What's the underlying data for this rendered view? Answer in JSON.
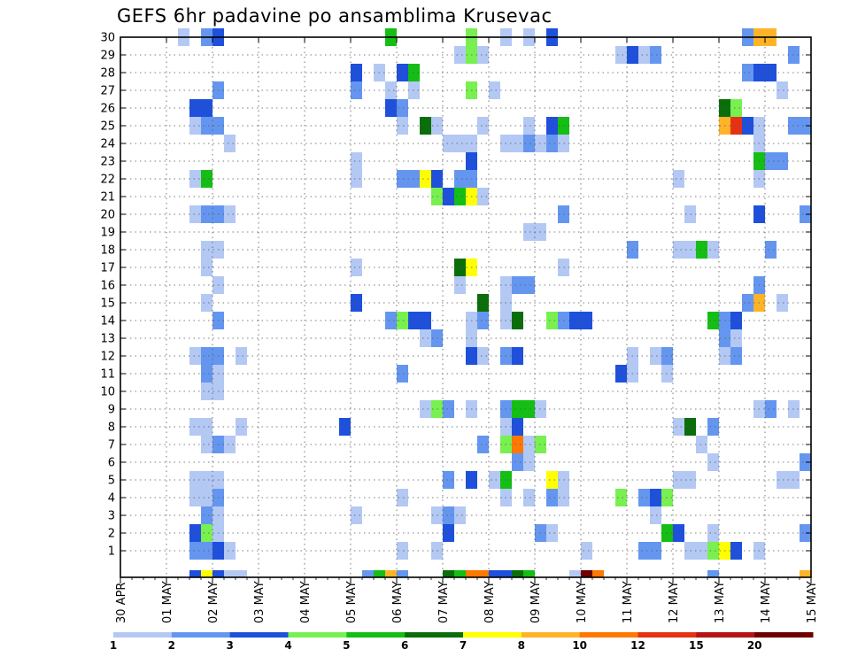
{
  "title": "GEFS 6hr padavine po ansamblima Krusevac",
  "chart_data": {
    "type": "heatmap",
    "title": "GEFS 6hr padavine po ansamblima Krusevac",
    "y_ticks": [
      1,
      2,
      3,
      4,
      5,
      6,
      7,
      8,
      9,
      10,
      11,
      12,
      13,
      14,
      15,
      16,
      17,
      18,
      19,
      20,
      21,
      22,
      23,
      24,
      25,
      26,
      27,
      28,
      29,
      30
    ],
    "x_ticks": [
      "30 APR",
      "01 MAY",
      "02 MAY",
      "03 MAY",
      "04 MAY",
      "05 MAY",
      "06 MAY",
      "07 MAY",
      "08 MAY",
      "09 MAY",
      "10 MAY",
      "11 MAY",
      "12 MAY",
      "13 MAY",
      "14 MAY",
      "15 MAY"
    ],
    "x_range_days": [
      0,
      15
    ],
    "grid": true,
    "colorbar": {
      "labels": [
        "1",
        "2",
        "3",
        "4",
        "5",
        "6",
        "7",
        "8",
        "10",
        "12",
        "15",
        "20"
      ],
      "colors": [
        "#b4c8f4",
        "#6496f0",
        "#1e50dc",
        "#78f050",
        "#14be14",
        "#0a6e0a",
        "#ffff00",
        "#ffb428",
        "#ff7800",
        "#e63214",
        "#b41414",
        "#6e0000"
      ]
    },
    "cells": [
      [
        30,
        1.25,
        1
      ],
      [
        30,
        1.75,
        2
      ],
      [
        30,
        2.0,
        3
      ],
      [
        30,
        5.75,
        5
      ],
      [
        30,
        7.5,
        4
      ],
      [
        30,
        8.25,
        1
      ],
      [
        30,
        8.75,
        1
      ],
      [
        30,
        9.25,
        3
      ],
      [
        30,
        13.5,
        2
      ],
      [
        30,
        13.75,
        8
      ],
      [
        30,
        14.0,
        8
      ],
      [
        29,
        7.25,
        1
      ],
      [
        29,
        7.5,
        4
      ],
      [
        29,
        7.75,
        1
      ],
      [
        29,
        10.75,
        1
      ],
      [
        29,
        11.0,
        3
      ],
      [
        29,
        11.25,
        1
      ],
      [
        29,
        11.5,
        2
      ],
      [
        29,
        14.5,
        2
      ],
      [
        28,
        5.0,
        3
      ],
      [
        28,
        5.5,
        1
      ],
      [
        28,
        6.0,
        3
      ],
      [
        28,
        6.25,
        5
      ],
      [
        28,
        13.5,
        2
      ],
      [
        28,
        13.75,
        3
      ],
      [
        28,
        14.0,
        3
      ],
      [
        27,
        2.0,
        2
      ],
      [
        27,
        5.0,
        2
      ],
      [
        27,
        5.75,
        1
      ],
      [
        27,
        6.25,
        1
      ],
      [
        27,
        7.5,
        4
      ],
      [
        27,
        8.0,
        1
      ],
      [
        27,
        14.25,
        1
      ],
      [
        26,
        1.5,
        3
      ],
      [
        26,
        1.75,
        3
      ],
      [
        26,
        5.75,
        3
      ],
      [
        26,
        6.0,
        2
      ],
      [
        26,
        13.0,
        6
      ],
      [
        26,
        13.25,
        4
      ],
      [
        25,
        1.5,
        1
      ],
      [
        25,
        1.75,
        2
      ],
      [
        25,
        2.0,
        2
      ],
      [
        25,
        6.0,
        1
      ],
      [
        25,
        6.5,
        6
      ],
      [
        25,
        6.75,
        1
      ],
      [
        25,
        7.75,
        1
      ],
      [
        25,
        8.75,
        1
      ],
      [
        25,
        9.25,
        3
      ],
      [
        25,
        9.5,
        5
      ],
      [
        25,
        13.0,
        8
      ],
      [
        25,
        13.25,
        10
      ],
      [
        25,
        13.5,
        3
      ],
      [
        25,
        13.75,
        1
      ],
      [
        25,
        14.5,
        2
      ],
      [
        25,
        14.75,
        2
      ],
      [
        24,
        2.25,
        1
      ],
      [
        24,
        7.0,
        1
      ],
      [
        24,
        7.25,
        1
      ],
      [
        24,
        7.5,
        1
      ],
      [
        24,
        8.25,
        1
      ],
      [
        24,
        8.5,
        1
      ],
      [
        24,
        8.75,
        2
      ],
      [
        24,
        9.0,
        1
      ],
      [
        24,
        9.25,
        2
      ],
      [
        24,
        9.5,
        1
      ],
      [
        24,
        13.75,
        1
      ],
      [
        23,
        5.0,
        1
      ],
      [
        23,
        7.5,
        3
      ],
      [
        23,
        13.75,
        5
      ],
      [
        23,
        14.0,
        2
      ],
      [
        23,
        14.25,
        2
      ],
      [
        22,
        1.5,
        1
      ],
      [
        22,
        1.75,
        5
      ],
      [
        22,
        5.0,
        1
      ],
      [
        22,
        6.0,
        2
      ],
      [
        22,
        6.25,
        2
      ],
      [
        22,
        6.5,
        7
      ],
      [
        22,
        6.75,
        3
      ],
      [
        22,
        7.25,
        2
      ],
      [
        22,
        7.5,
        2
      ],
      [
        22,
        12.0,
        1
      ],
      [
        22,
        13.75,
        1
      ],
      [
        21,
        6.75,
        4
      ],
      [
        21,
        7.0,
        3
      ],
      [
        21,
        7.25,
        5
      ],
      [
        21,
        7.5,
        7
      ],
      [
        21,
        7.75,
        1
      ],
      [
        20,
        1.5,
        1
      ],
      [
        20,
        1.75,
        2
      ],
      [
        20,
        2.0,
        2
      ],
      [
        20,
        2.25,
        1
      ],
      [
        20,
        9.5,
        2
      ],
      [
        20,
        12.25,
        1
      ],
      [
        20,
        13.75,
        3
      ],
      [
        20,
        14.75,
        2
      ],
      [
        19,
        8.75,
        1
      ],
      [
        19,
        9.0,
        1
      ],
      [
        18,
        1.75,
        1
      ],
      [
        18,
        2.0,
        1
      ],
      [
        18,
        11.0,
        2
      ],
      [
        18,
        12.0,
        1
      ],
      [
        18,
        12.25,
        1
      ],
      [
        18,
        12.5,
        5
      ],
      [
        18,
        12.75,
        1
      ],
      [
        18,
        14.0,
        2
      ],
      [
        17,
        1.75,
        1
      ],
      [
        17,
        5.0,
        1
      ],
      [
        17,
        7.25,
        6
      ],
      [
        17,
        7.5,
        7
      ],
      [
        17,
        9.5,
        1
      ],
      [
        16,
        2.0,
        1
      ],
      [
        16,
        7.25,
        1
      ],
      [
        16,
        8.25,
        1
      ],
      [
        16,
        8.5,
        2
      ],
      [
        16,
        8.75,
        2
      ],
      [
        16,
        13.75,
        2
      ],
      [
        15,
        1.75,
        1
      ],
      [
        15,
        5.0,
        3
      ],
      [
        15,
        7.75,
        6
      ],
      [
        15,
        8.25,
        1
      ],
      [
        15,
        13.5,
        2
      ],
      [
        15,
        13.75,
        8
      ],
      [
        15,
        14.25,
        1
      ],
      [
        14,
        2.0,
        2
      ],
      [
        14,
        5.75,
        2
      ],
      [
        14,
        6.0,
        4
      ],
      [
        14,
        6.25,
        3
      ],
      [
        14,
        6.5,
        3
      ],
      [
        14,
        7.5,
        1
      ],
      [
        14,
        7.75,
        2
      ],
      [
        14,
        8.25,
        1
      ],
      [
        14,
        8.5,
        6
      ],
      [
        14,
        9.25,
        4
      ],
      [
        14,
        9.5,
        2
      ],
      [
        14,
        9.75,
        3
      ],
      [
        14,
        10.0,
        3
      ],
      [
        14,
        12.75,
        5
      ],
      [
        14,
        13.0,
        2
      ],
      [
        14,
        13.25,
        3
      ],
      [
        13,
        6.5,
        1
      ],
      [
        13,
        6.75,
        2
      ],
      [
        13,
        7.5,
        1
      ],
      [
        13,
        13.0,
        2
      ],
      [
        13,
        13.25,
        1
      ],
      [
        12,
        1.5,
        1
      ],
      [
        12,
        1.75,
        2
      ],
      [
        12,
        2.0,
        2
      ],
      [
        12,
        2.5,
        1
      ],
      [
        12,
        7.5,
        3
      ],
      [
        12,
        7.75,
        1
      ],
      [
        12,
        8.25,
        2
      ],
      [
        12,
        8.5,
        3
      ],
      [
        12,
        11.0,
        1
      ],
      [
        12,
        11.5,
        1
      ],
      [
        12,
        11.75,
        2
      ],
      [
        12,
        13.0,
        1
      ],
      [
        12,
        13.25,
        2
      ],
      [
        11,
        1.75,
        2
      ],
      [
        11,
        2.0,
        1
      ],
      [
        11,
        6.0,
        2
      ],
      [
        11,
        10.75,
        3
      ],
      [
        11,
        11.0,
        1
      ],
      [
        11,
        11.75,
        1
      ],
      [
        10,
        1.75,
        1
      ],
      [
        10,
        2.0,
        1
      ],
      [
        9,
        6.5,
        1
      ],
      [
        9,
        6.75,
        4
      ],
      [
        9,
        7.0,
        2
      ],
      [
        9,
        7.5,
        1
      ],
      [
        9,
        8.25,
        2
      ],
      [
        9,
        8.5,
        5
      ],
      [
        9,
        8.75,
        5
      ],
      [
        9,
        9.0,
        1
      ],
      [
        9,
        13.75,
        1
      ],
      [
        9,
        14.0,
        2
      ],
      [
        9,
        14.5,
        1
      ],
      [
        8,
        1.5,
        1
      ],
      [
        8,
        1.75,
        1
      ],
      [
        8,
        2.5,
        1
      ],
      [
        8,
        4.75,
        3
      ],
      [
        8,
        8.25,
        1
      ],
      [
        8,
        8.5,
        3
      ],
      [
        8,
        12.0,
        1
      ],
      [
        8,
        12.25,
        6
      ],
      [
        8,
        12.75,
        2
      ],
      [
        7,
        1.75,
        1
      ],
      [
        7,
        2.0,
        2
      ],
      [
        7,
        2.25,
        1
      ],
      [
        7,
        7.75,
        2
      ],
      [
        7,
        8.25,
        4
      ],
      [
        7,
        8.5,
        9
      ],
      [
        7,
        8.75,
        1
      ],
      [
        7,
        9.0,
        4
      ],
      [
        7,
        12.5,
        1
      ],
      [
        6,
        8.5,
        2
      ],
      [
        6,
        8.75,
        1
      ],
      [
        6,
        12.75,
        1
      ],
      [
        6,
        14.75,
        2
      ],
      [
        5,
        1.5,
        1
      ],
      [
        5,
        1.75,
        1
      ],
      [
        5,
        2.0,
        1
      ],
      [
        5,
        7.0,
        2
      ],
      [
        5,
        7.5,
        3
      ],
      [
        5,
        8.0,
        1
      ],
      [
        5,
        8.25,
        5
      ],
      [
        5,
        9.25,
        7
      ],
      [
        5,
        9.5,
        1
      ],
      [
        5,
        12.0,
        1
      ],
      [
        5,
        12.25,
        1
      ],
      [
        5,
        14.25,
        1
      ],
      [
        5,
        14.5,
        1
      ],
      [
        4,
        1.5,
        1
      ],
      [
        4,
        1.75,
        1
      ],
      [
        4,
        2.0,
        2
      ],
      [
        4,
        6.0,
        1
      ],
      [
        4,
        8.25,
        1
      ],
      [
        4,
        8.75,
        1
      ],
      [
        4,
        9.25,
        2
      ],
      [
        4,
        9.5,
        1
      ],
      [
        4,
        10.75,
        4
      ],
      [
        4,
        11.25,
        2
      ],
      [
        4,
        11.5,
        3
      ],
      [
        4,
        11.75,
        4
      ],
      [
        3,
        1.75,
        2
      ],
      [
        3,
        2.0,
        1
      ],
      [
        3,
        5.0,
        1
      ],
      [
        3,
        6.75,
        1
      ],
      [
        3,
        7.0,
        2
      ],
      [
        3,
        7.25,
        1
      ],
      [
        3,
        11.5,
        1
      ],
      [
        2,
        1.5,
        3
      ],
      [
        2,
        1.75,
        4
      ],
      [
        2,
        2.0,
        1
      ],
      [
        2,
        7.0,
        3
      ],
      [
        2,
        9.0,
        2
      ],
      [
        2,
        9.25,
        1
      ],
      [
        2,
        11.75,
        5
      ],
      [
        2,
        12.0,
        3
      ],
      [
        2,
        12.75,
        1
      ],
      [
        2,
        14.75,
        2
      ],
      [
        1,
        1.5,
        2
      ],
      [
        1,
        1.75,
        2
      ],
      [
        1,
        2.0,
        3
      ],
      [
        1,
        2.25,
        1
      ],
      [
        1,
        6.0,
        1
      ],
      [
        1,
        6.75,
        1
      ],
      [
        1,
        10.0,
        1
      ],
      [
        1,
        11.25,
        2
      ],
      [
        1,
        11.5,
        2
      ],
      [
        1,
        12.25,
        1
      ],
      [
        1,
        12.5,
        1
      ],
      [
        1,
        12.75,
        4
      ],
      [
        1,
        13.0,
        7
      ],
      [
        1,
        13.25,
        3
      ],
      [
        1,
        13.75,
        1
      ],
      [
        0,
        1.5,
        3
      ],
      [
        0,
        1.75,
        7
      ],
      [
        0,
        2.0,
        3
      ],
      [
        0,
        2.25,
        1
      ],
      [
        0,
        2.5,
        1
      ],
      [
        0,
        5.25,
        2
      ],
      [
        0,
        5.5,
        5
      ],
      [
        0,
        5.75,
        8
      ],
      [
        0,
        6.0,
        2
      ],
      [
        0,
        7.0,
        6
      ],
      [
        0,
        7.25,
        5
      ],
      [
        0,
        7.5,
        9
      ],
      [
        0,
        7.75,
        9
      ],
      [
        0,
        8.0,
        3
      ],
      [
        0,
        8.25,
        3
      ],
      [
        0,
        8.5,
        6
      ],
      [
        0,
        8.75,
        5
      ],
      [
        0,
        9.75,
        1
      ],
      [
        0,
        10.0,
        12
      ],
      [
        0,
        10.25,
        9
      ],
      [
        0,
        12.75,
        2
      ],
      [
        0,
        14.75,
        8
      ]
    ]
  }
}
